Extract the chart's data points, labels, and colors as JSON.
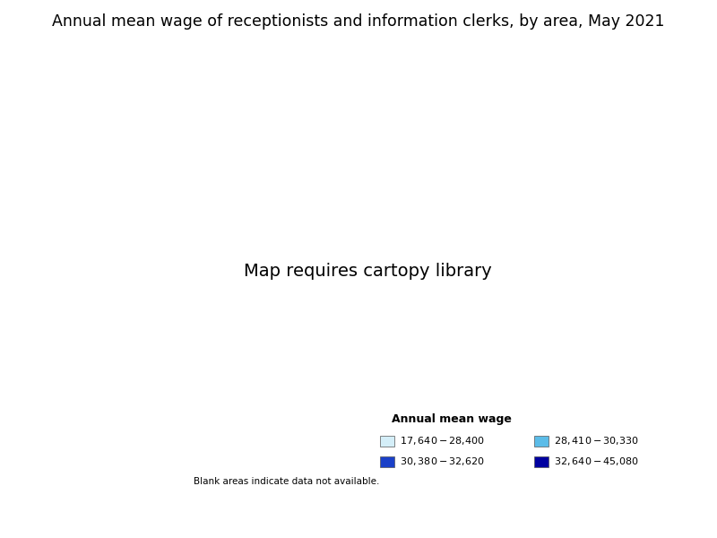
{
  "title": "Annual mean wage of receptionists and information clerks, by area, May 2021",
  "legend_title": "Annual mean wage",
  "legend_labels": [
    "$17,640 - $28,400",
    "$28,410 - $30,330",
    "$30,380 - $32,620",
    "$32,640 - $45,080"
  ],
  "legend_colors": [
    "#d4eef8",
    "#5bbce8",
    "#1a40c8",
    "#0000a0"
  ],
  "blank_note": "Blank areas indicate data not available.",
  "background_color": "#ffffff",
  "figsize": [
    8.0,
    6.0
  ],
  "dpi": 100,
  "title_fontsize": 12.5,
  "legend_title_fontsize": 9,
  "legend_fontsize": 8
}
